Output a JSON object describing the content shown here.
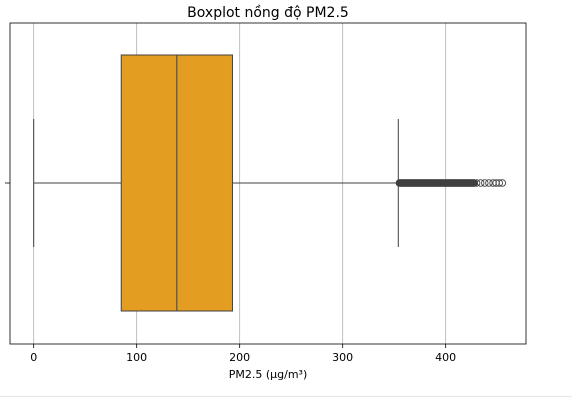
{
  "chart_data": {
    "type": "boxplot",
    "title": "Boxplot nồng độ PM2.5",
    "xlabel": "PM2.5 (µg/m³)",
    "ylabel": "",
    "xlim": [
      -23,
      478
    ],
    "xticks": [
      0,
      100,
      200,
      300,
      400
    ],
    "grid": "vertical",
    "box": {
      "whisker_low": 0,
      "q1": 85,
      "median": 139,
      "q3": 193,
      "whisker_high": 354,
      "color": "#E39E21"
    },
    "outliers_range": [
      354,
      455
    ],
    "outliers_sample": [
      355,
      358,
      362,
      366,
      370,
      374,
      378,
      382,
      386,
      390,
      394,
      398,
      402,
      406,
      410,
      414,
      418,
      422,
      426,
      430,
      434,
      438,
      442,
      446,
      449,
      452,
      455
    ]
  }
}
